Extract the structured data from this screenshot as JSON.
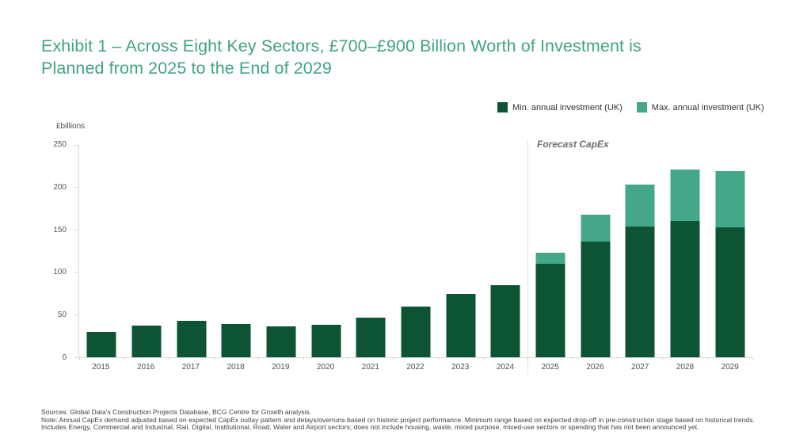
{
  "title_lines": [
    "Exhibit 1 – Across Eight Key Sectors, £700–£900 Billion Worth of Investment is",
    "Planned from 2025 to the End of 2029"
  ],
  "legend": [
    {
      "label": "Min. annual investment (UK)",
      "color": "#0C5433"
    },
    {
      "label": "Max. annual investment (UK)",
      "color": "#44A78A"
    }
  ],
  "forecast_label": "Forecast CapEx",
  "colors": {
    "title": "#41A47F",
    "bar_min": "#0C5433",
    "bar_max": "#44A78A",
    "axis": "#D9D9D9"
  },
  "chart_data": {
    "type": "bar",
    "stacked": true,
    "title": "Exhibit 1 – Across Eight Key Sectors, £700–£900 Billion Worth of Investment is Planned from 2025 to the End of 2029",
    "ylabel": "£billions",
    "xlabel": "",
    "ylim": [
      0,
      250
    ],
    "yticks": [
      0,
      50,
      100,
      150,
      200,
      250
    ],
    "grid": false,
    "legend_position": "top-right",
    "categories": [
      "2015",
      "2016",
      "2017",
      "2018",
      "2019",
      "2020",
      "2021",
      "2022",
      "2023",
      "2024",
      "2025",
      "2026",
      "2027",
      "2028",
      "2029"
    ],
    "series": [
      {
        "name": "Min. annual investment (UK)",
        "color": "#0C5433",
        "values": [
          30,
          37,
          43,
          39,
          36,
          38,
          47,
          60,
          75,
          85,
          110,
          136,
          154,
          160,
          153
        ]
      },
      {
        "name": "Max. annual investment (UK)",
        "color": "#44A78A",
        "note": "drawn stacked as increment above min",
        "values": [
          0,
          0,
          0,
          0,
          0,
          0,
          0,
          0,
          0,
          0,
          13,
          32,
          49,
          61,
          66
        ]
      }
    ],
    "forecast_totals_max": {
      "2025": 123,
      "2026": 168,
      "2027": 203,
      "2028": 221,
      "2029": 219
    },
    "forecast_start_category": "2025",
    "annotation": "Forecast CapEx"
  },
  "footnotes": {
    "sources": "Sources: Global Data's Construction Projects Database, BCG Centre for Growth analysis.",
    "note": "Note: Annual CapEx demand adjusted based on expected CapEx outlay pattern and delays/overruns based on historic project performance. Minimum range based on expected drop-off in pre-construction stage based on historical trends. Includes Energy, Commercial and Industrial, Rail, Digital, Institutional, Road, Water and Airport sectors; does not include housing, waste, mixed purpose, mixed-use sectors or spending that has not been announced yet."
  }
}
